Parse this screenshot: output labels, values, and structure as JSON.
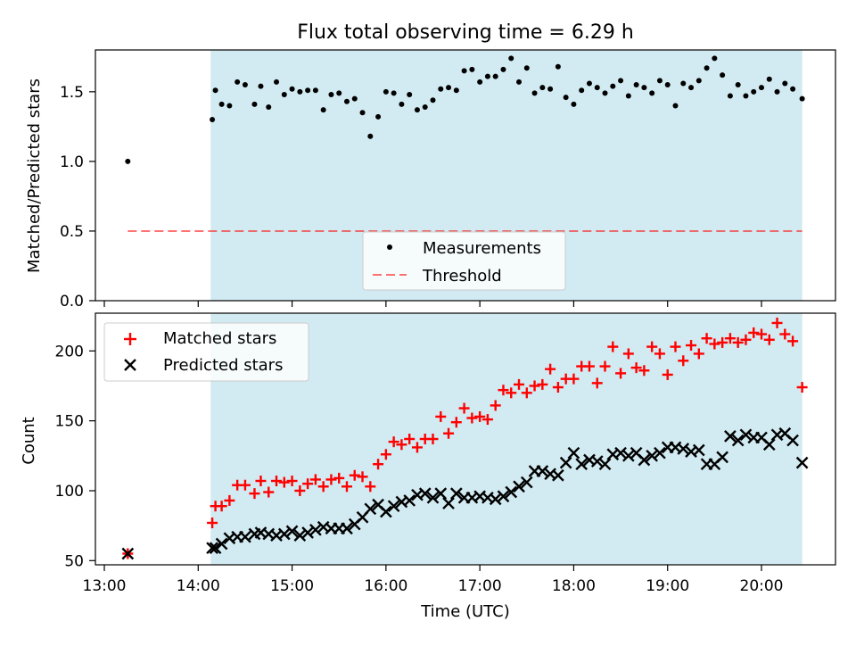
{
  "figure_title": "Flux total observing time = 6.29 h",
  "xlabel": "Time (UTC)",
  "x_ticks": [
    "13:00",
    "14:00",
    "15:00",
    "16:00",
    "17:00",
    "18:00",
    "19:00",
    "20:00"
  ],
  "colors": {
    "shade": "#add8e6",
    "measurement": "#000000",
    "threshold": "#ff0000",
    "matched": "#ff0000",
    "predicted": "#000000"
  },
  "chart_data": [
    {
      "type": "scatter",
      "ylabel": "Matched/Predicted stars",
      "ylim": [
        0,
        1.8
      ],
      "y_ticks": [
        "0.0",
        "0.5",
        "1.0",
        "1.5"
      ],
      "y_tick_values": [
        0,
        0.5,
        1.0,
        1.5
      ],
      "shaded_span": [
        "14:08",
        "20:26"
      ],
      "legend_position": "lower-center",
      "series": [
        {
          "name": "Measurements",
          "marker": "dot",
          "x": [
            "13:15",
            "14:09",
            "14:11",
            "14:15",
            "14:20",
            "14:25",
            "14:30",
            "14:36",
            "14:40",
            "14:45",
            "14:50",
            "14:55",
            "15:00",
            "15:05",
            "15:10",
            "15:15",
            "15:20",
            "15:25",
            "15:30",
            "15:35",
            "15:40",
            "15:45",
            "15:50",
            "15:55",
            "16:00",
            "16:05",
            "16:10",
            "16:15",
            "16:20",
            "16:25",
            "16:30",
            "16:35",
            "16:40",
            "16:45",
            "16:50",
            "16:55",
            "17:00",
            "17:05",
            "17:10",
            "17:15",
            "17:20",
            "17:25",
            "17:30",
            "17:35",
            "17:40",
            "17:45",
            "17:50",
            "17:55",
            "18:00",
            "18:05",
            "18:10",
            "18:15",
            "18:20",
            "18:25",
            "18:30",
            "18:35",
            "18:40",
            "18:45",
            "18:50",
            "18:55",
            "19:00",
            "19:05",
            "19:10",
            "19:15",
            "19:20",
            "19:25",
            "19:30",
            "19:35",
            "19:40",
            "19:45",
            "19:50",
            "19:55",
            "20:00",
            "20:05",
            "20:10",
            "20:15",
            "20:20",
            "20:26"
          ],
          "y": [
            1.0,
            1.3,
            1.51,
            1.41,
            1.4,
            1.57,
            1.55,
            1.41,
            1.54,
            1.39,
            1.57,
            1.48,
            1.52,
            1.5,
            1.51,
            1.51,
            1.37,
            1.48,
            1.49,
            1.43,
            1.45,
            1.35,
            1.18,
            1.32,
            1.5,
            1.49,
            1.41,
            1.48,
            1.37,
            1.39,
            1.44,
            1.52,
            1.53,
            1.51,
            1.65,
            1.66,
            1.57,
            1.61,
            1.61,
            1.66,
            1.74,
            1.57,
            1.67,
            1.49,
            1.53,
            1.52,
            1.68,
            1.46,
            1.41,
            1.51,
            1.56,
            1.53,
            1.49,
            1.54,
            1.58,
            1.47,
            1.55,
            1.53,
            1.49,
            1.58,
            1.55,
            1.4,
            1.56,
            1.53,
            1.58,
            1.67,
            1.74,
            1.62,
            1.47,
            1.55,
            1.47,
            1.5,
            1.53,
            1.59,
            1.5,
            1.56,
            1.52,
            1.45
          ]
        },
        {
          "name": "Threshold",
          "style": "dashed-line",
          "x": [
            "13:15",
            "20:26"
          ],
          "y": [
            0.5,
            0.5
          ]
        }
      ]
    },
    {
      "type": "scatter",
      "ylabel": "Count",
      "ylim": [
        47,
        227
      ],
      "y_ticks": [
        "50",
        "100",
        "150",
        "200"
      ],
      "y_tick_values": [
        50,
        100,
        150,
        200
      ],
      "shaded_span": [
        "14:08",
        "20:26"
      ],
      "legend_position": "upper-left",
      "series": [
        {
          "name": "Matched stars",
          "marker": "plus",
          "x": [
            "13:15",
            "14:09",
            "14:11",
            "14:15",
            "14:20",
            "14:25",
            "14:30",
            "14:36",
            "14:40",
            "14:45",
            "14:50",
            "14:55",
            "15:00",
            "15:05",
            "15:10",
            "15:15",
            "15:20",
            "15:25",
            "15:30",
            "15:35",
            "15:40",
            "15:45",
            "15:50",
            "15:55",
            "16:00",
            "16:05",
            "16:10",
            "16:15",
            "16:20",
            "16:25",
            "16:30",
            "16:35",
            "16:40",
            "16:45",
            "16:50",
            "16:55",
            "17:00",
            "17:05",
            "17:10",
            "17:15",
            "17:20",
            "17:25",
            "17:30",
            "17:35",
            "17:40",
            "17:45",
            "17:50",
            "17:55",
            "18:00",
            "18:05",
            "18:10",
            "18:15",
            "18:20",
            "18:25",
            "18:30",
            "18:35",
            "18:40",
            "18:45",
            "18:50",
            "18:55",
            "19:00",
            "19:05",
            "19:10",
            "19:15",
            "19:20",
            "19:25",
            "19:30",
            "19:35",
            "19:40",
            "19:45",
            "19:50",
            "19:55",
            "20:00",
            "20:05",
            "20:10",
            "20:15",
            "20:20",
            "20:26"
          ],
          "y": [
            55,
            77,
            89,
            89,
            93,
            104,
            104,
            98,
            107,
            99,
            107,
            106,
            107,
            100,
            105,
            108,
            103,
            108,
            109,
            103,
            111,
            110,
            103,
            119,
            126,
            135,
            133,
            137,
            131,
            137,
            137,
            153,
            141,
            149,
            159,
            152,
            153,
            151,
            161,
            172,
            170,
            176,
            170,
            175,
            176,
            187,
            174,
            180,
            180,
            189,
            189,
            177,
            189,
            203,
            184,
            198,
            188,
            186,
            203,
            198,
            183,
            203,
            193,
            204,
            198,
            209,
            205,
            206,
            209,
            206,
            208,
            213,
            212,
            208,
            220,
            212,
            207,
            174
          ]
        },
        {
          "name": "Predicted stars",
          "marker": "x",
          "x": [
            "13:15",
            "14:09",
            "14:11",
            "14:15",
            "14:20",
            "14:25",
            "14:30",
            "14:36",
            "14:40",
            "14:45",
            "14:50",
            "14:55",
            "15:00",
            "15:05",
            "15:10",
            "15:15",
            "15:20",
            "15:25",
            "15:30",
            "15:35",
            "15:40",
            "15:45",
            "15:50",
            "15:55",
            "16:00",
            "16:05",
            "16:10",
            "16:15",
            "16:20",
            "16:25",
            "16:30",
            "16:35",
            "16:40",
            "16:45",
            "16:50",
            "16:55",
            "17:00",
            "17:05",
            "17:10",
            "17:15",
            "17:20",
            "17:25",
            "17:30",
            "17:35",
            "17:40",
            "17:45",
            "17:50",
            "17:55",
            "18:00",
            "18:05",
            "18:10",
            "18:15",
            "18:20",
            "18:25",
            "18:30",
            "18:35",
            "18:40",
            "18:45",
            "18:50",
            "18:55",
            "19:00",
            "19:05",
            "19:10",
            "19:15",
            "19:20",
            "19:25",
            "19:30",
            "19:35",
            "19:40",
            "19:45",
            "19:50",
            "19:55",
            "20:00",
            "20:05",
            "20:10",
            "20:15",
            "20:20",
            "20:26"
          ],
          "y": [
            55,
            59,
            59,
            62,
            66,
            67,
            67,
            69,
            70,
            69,
            68,
            69,
            71,
            68,
            70,
            72,
            74,
            73,
            73,
            73,
            76,
            81,
            87,
            90,
            85,
            89,
            92,
            93,
            97,
            98,
            95,
            98,
            91,
            98,
            95,
            95,
            96,
            95,
            94,
            96,
            99,
            103,
            106,
            114,
            114,
            112,
            111,
            120,
            127,
            119,
            122,
            121,
            119,
            126,
            127,
            125,
            127,
            122,
            125,
            127,
            131,
            131,
            130,
            128,
            129,
            119,
            119,
            124,
            139,
            136,
            140,
            138,
            138,
            133,
            140,
            141,
            136,
            120
          ]
        }
      ]
    }
  ]
}
